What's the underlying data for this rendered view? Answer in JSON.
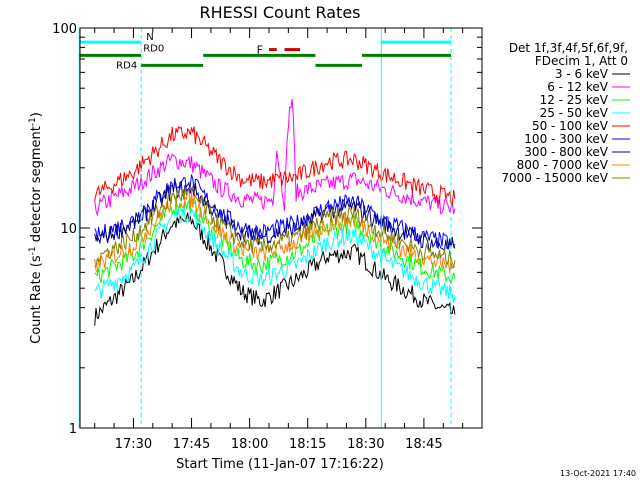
{
  "chart_data": {
    "type": "line",
    "title": "RHESSI Count Rates",
    "xlabel": "Start Time (11-Jan-07 17:16:22)",
    "ylabel": "Count Rate (s",
    "ylabel_sup1": "-1",
    "ylabel_mid": " detector segment",
    "ylabel_sup2": "-1",
    "ylabel_end": ")",
    "yscale": "log",
    "ylim": [
      1,
      100
    ],
    "xlim_minutes": [
      17.27,
      19.0
    ],
    "x_ticks": [
      "17:30",
      "17:45",
      "18:00",
      "18:15",
      "18:30",
      "18:45"
    ],
    "y_ticks": [
      "1",
      "10",
      "100"
    ],
    "legend_header": [
      "Det 1f,3f,4f,5f,6f,9f,",
      "FDecim 1, Att 0"
    ],
    "legend_position": "right",
    "footer_date": "13-Oct-2021 17:40",
    "series": [
      {
        "name": "3 - 6 keV",
        "color": "#000000",
        "x": [
          "17:20",
          "17:30",
          "17:40",
          "17:45",
          "17:52",
          "17:58",
          "18:03",
          "18:12",
          "18:20",
          "18:27",
          "18:35",
          "18:45",
          "18:53"
        ],
        "values": [
          3.6,
          5.5,
          10.5,
          11.0,
          7.0,
          4.8,
          4.3,
          5.5,
          7.2,
          7.6,
          5.6,
          4.3,
          3.7
        ]
      },
      {
        "name": "6 - 12 keV",
        "color": "#ff00ff",
        "x": [
          "17:20",
          "17:30",
          "17:40",
          "17:45",
          "17:52",
          "17:58",
          "18:03",
          "18:06",
          "18:07",
          "18:09",
          "18:10",
          "18:11",
          "18:12",
          "18:20",
          "18:27",
          "18:35",
          "18:45",
          "18:53"
        ],
        "values": [
          12.5,
          16.0,
          22.0,
          21.0,
          16.0,
          14.0,
          13.5,
          14.0,
          25.0,
          13.5,
          35.0,
          45.0,
          15.0,
          16.5,
          17.5,
          15.5,
          13.5,
          12.5
        ]
      },
      {
        "name": "12 - 25 keV",
        "color": "#00ff00",
        "x": [
          "17:20",
          "17:30",
          "17:40",
          "17:45",
          "17:52",
          "17:58",
          "18:03",
          "18:12",
          "18:20",
          "18:27",
          "18:35",
          "18:45",
          "18:53"
        ],
        "values": [
          5.6,
          7.3,
          12.8,
          13.0,
          9.0,
          6.9,
          6.5,
          7.5,
          9.7,
          10.5,
          8.0,
          6.3,
          5.6
        ]
      },
      {
        "name": "25 - 50 keV",
        "color": "#00ffff",
        "x": [
          "17:20",
          "17:30",
          "17:40",
          "17:45",
          "17:52",
          "17:58",
          "18:03",
          "18:12",
          "18:20",
          "18:27",
          "18:35",
          "18:45",
          "18:53"
        ],
        "values": [
          4.7,
          6.2,
          11.5,
          12.0,
          8.0,
          6.0,
          5.5,
          6.5,
          8.5,
          9.2,
          6.9,
          5.3,
          4.6
        ]
      },
      {
        "name": "50 - 100 keV",
        "color": "#ff0000",
        "x": [
          "17:20",
          "17:30",
          "17:40",
          "17:45",
          "17:52",
          "17:58",
          "18:03",
          "18:12",
          "18:20",
          "18:27",
          "18:35",
          "18:45",
          "18:53"
        ],
        "values": [
          14.5,
          19.0,
          29.0,
          30.0,
          22.0,
          17.5,
          17.0,
          18.0,
          21.5,
          22.0,
          18.5,
          15.5,
          14.0
        ]
      },
      {
        "name": "100 - 300 keV",
        "color": "#0000ff",
        "x": [
          "17:20",
          "17:30",
          "17:40",
          "17:45",
          "17:52",
          "17:58",
          "18:03",
          "18:12",
          "18:20",
          "18:27",
          "18:35",
          "18:45",
          "18:53"
        ],
        "values": [
          9.0,
          11.0,
          16.5,
          17.0,
          12.0,
          10.0,
          9.5,
          10.5,
          12.8,
          13.5,
          10.8,
          9.0,
          8.3
        ]
      },
      {
        "name": "300 - 800 keV",
        "color": "#000080",
        "x": [
          "17:20",
          "17:30",
          "17:40",
          "17:45",
          "17:52",
          "17:58",
          "18:03",
          "18:12",
          "18:20",
          "18:27",
          "18:35",
          "18:45",
          "18:53"
        ],
        "values": [
          8.6,
          10.5,
          15.5,
          16.0,
          11.5,
          9.5,
          9.0,
          10.0,
          12.2,
          12.8,
          10.3,
          8.6,
          7.9
        ]
      },
      {
        "name": "800 - 7000 keV",
        "color": "#ff8000",
        "x": [
          "17:20",
          "17:30",
          "17:40",
          "17:45",
          "17:52",
          "17:58",
          "18:03",
          "18:12",
          "18:20",
          "18:27",
          "18:35",
          "18:45",
          "18:53"
        ],
        "values": [
          6.4,
          8.2,
          13.5,
          14.0,
          9.8,
          7.8,
          7.4,
          8.4,
          10.4,
          11.0,
          8.6,
          7.0,
          6.4
        ]
      },
      {
        "name": "7000 - 15000 keV",
        "color": "#808000",
        "x": [
          "17:20",
          "17:30",
          "17:40",
          "17:45",
          "17:52",
          "17:58",
          "18:03",
          "18:12",
          "18:20",
          "18:27",
          "18:35",
          "18:45",
          "18:53"
        ],
        "values": [
          7.0,
          9.0,
          14.3,
          15.0,
          10.6,
          8.5,
          8.0,
          9.0,
          11.2,
          11.8,
          9.3,
          7.6,
          6.9
        ]
      }
    ],
    "annotations": {
      "n_label": "N",
      "n_color": "#00ffff",
      "n_bars": [
        [
          "17:16",
          "17:32"
        ],
        [
          "18:34",
          "18:52"
        ]
      ],
      "n_value": 85,
      "rd0_label": "RD0",
      "rd4_label": "RD4",
      "rd_color": "#008000",
      "rd_high": [
        [
          "17:16",
          "17:32"
        ],
        [
          "17:48",
          "18:17"
        ],
        [
          "18:29",
          "18:52"
        ]
      ],
      "rd_low": [
        [
          "17:32",
          "17:48"
        ],
        [
          "18:17",
          "18:29"
        ]
      ],
      "rd_high_value": 73,
      "rd_low_value": 65,
      "f_label": "F",
      "f_color": "#cc0000",
      "f_bars": [
        [
          "18:05",
          "18:07"
        ],
        [
          "18:09",
          "18:13"
        ]
      ],
      "f_value": 78,
      "vlines_solid": [
        "17:16",
        "18:34"
      ],
      "vlines_dashed": [
        "17:32",
        "18:52"
      ],
      "vline_color": "#00ffff"
    }
  }
}
